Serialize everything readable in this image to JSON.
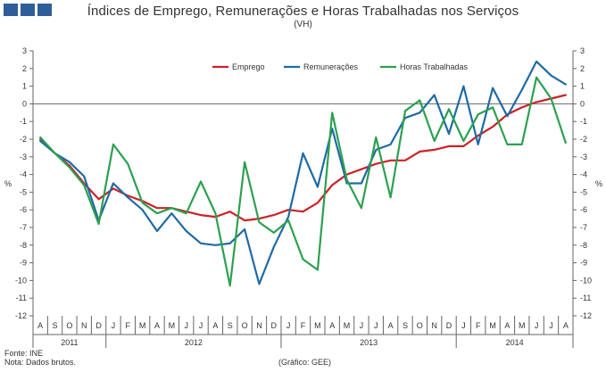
{
  "chart_data": {
    "type": "line",
    "title": "Índices de Emprego, Remunerações e Horas Trabalhadas nos Serviços",
    "subtitle": "(VH)",
    "ylabel_left": "%",
    "ylabel_right": "%",
    "ylim": [
      -12,
      3
    ],
    "yticks": [
      3,
      2,
      1,
      0,
      -1,
      -2,
      -3,
      -4,
      -5,
      -6,
      -7,
      -8,
      -9,
      -10,
      -11,
      -12
    ],
    "grid": false,
    "legend_position": "top-right",
    "months": [
      "A",
      "S",
      "O",
      "N",
      "D",
      "J",
      "F",
      "M",
      "A",
      "M",
      "J",
      "J",
      "A",
      "S",
      "O",
      "N",
      "D",
      "J",
      "F",
      "M",
      "A",
      "M",
      "J",
      "J",
      "A",
      "S",
      "O",
      "N",
      "D",
      "J",
      "F",
      "M",
      "A",
      "M",
      "J",
      "J",
      "A"
    ],
    "years": [
      {
        "label": "2011",
        "start": 0,
        "count": 5
      },
      {
        "label": "2012",
        "start": 5,
        "count": 12
      },
      {
        "label": "2013",
        "start": 17,
        "count": 12
      },
      {
        "label": "2014",
        "start": 29,
        "count": 8
      }
    ],
    "series": [
      {
        "name": "Emprego",
        "color": "#cc2127",
        "values": [
          -2.0,
          -2.8,
          -3.5,
          -4.5,
          -5.4,
          -4.8,
          -5.2,
          -5.5,
          -5.9,
          -5.9,
          -6.1,
          -6.3,
          -6.4,
          -6.1,
          -6.6,
          -6.5,
          -6.3,
          -6.0,
          -6.1,
          -5.6,
          -4.6,
          -4.0,
          -3.7,
          -3.4,
          -3.2,
          -3.2,
          -2.7,
          -2.6,
          -2.4,
          -2.4,
          -1.8,
          -1.3,
          -0.6,
          -0.2,
          0.1,
          0.3,
          0.5
        ]
      },
      {
        "name": "Remunerações",
        "color": "#1f6aa5",
        "values": [
          -2.1,
          -2.8,
          -3.3,
          -4.1,
          -6.6,
          -4.5,
          -5.3,
          -6.0,
          -7.2,
          -6.2,
          -7.2,
          -7.9,
          -8.0,
          -7.9,
          -7.1,
          -10.2,
          -8.1,
          -6.4,
          -2.8,
          -4.7,
          -1.4,
          -4.5,
          -4.5,
          -2.6,
          -2.3,
          -0.8,
          -0.5,
          0.5,
          -1.7,
          1.0,
          -2.3,
          0.9,
          -0.7,
          0.8,
          2.4,
          1.6,
          1.1
        ]
      },
      {
        "name": "Horas Trabalhadas",
        "color": "#2ca050",
        "values": [
          -1.9,
          -2.8,
          -3.6,
          -4.6,
          -6.8,
          -2.3,
          -3.4,
          -5.6,
          -6.2,
          -5.9,
          -6.2,
          -4.4,
          -6.2,
          -10.3,
          -3.3,
          -6.7,
          -7.3,
          -6.6,
          -8.8,
          -9.4,
          -0.5,
          -4.3,
          -5.9,
          -1.9,
          -5.3,
          -0.4,
          0.2,
          -2.1,
          -0.3,
          -2.1,
          -0.6,
          -0.2,
          -2.3,
          -2.3,
          1.5,
          0.3,
          -2.2
        ]
      }
    ]
  },
  "footer": {
    "source": "Fonte: INE",
    "note": "Nota: Dados brutos.",
    "credit": "(Gráfico: GEE)"
  }
}
